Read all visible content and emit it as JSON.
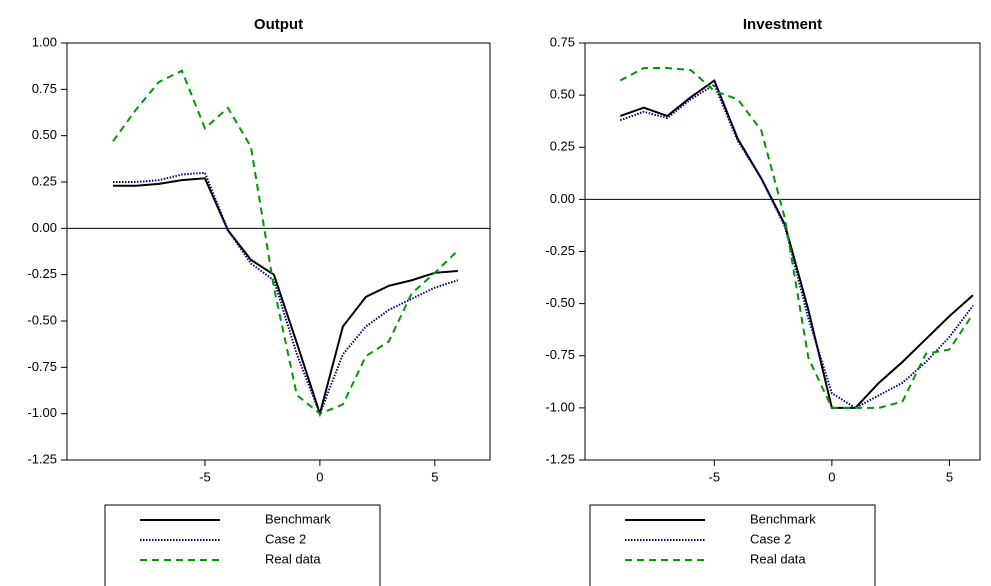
{
  "chart_data": [
    {
      "type": "line",
      "title": "Output",
      "x": [
        -9,
        -8,
        -7,
        -6,
        -5,
        -4,
        -3,
        -2,
        -1,
        0,
        1,
        2,
        3,
        4,
        5,
        6
      ],
      "xlim": [
        -11,
        7.4
      ],
      "xticks": [
        -5,
        0,
        5
      ],
      "ylim": [
        -1.25,
        1.0
      ],
      "yticks": [
        {
          "value": 1.0,
          "label": "1.00"
        },
        {
          "value": 0.75,
          "label": "0.75"
        },
        {
          "value": 0.5,
          "label": "0.50"
        },
        {
          "value": 0.25,
          "label": "0.25"
        },
        {
          "value": 0,
          "label": "0.00"
        },
        {
          "value": -0.25,
          "label": "-0.25"
        },
        {
          "value": -0.5,
          "label": "-0.50"
        },
        {
          "value": -0.75,
          "label": "-0.75"
        },
        {
          "value": -1.0,
          "label": "-1.00"
        },
        {
          "value": -1.25,
          "label": "-1.25"
        }
      ],
      "zero_line": true,
      "series": [
        {
          "name": "Benchmark",
          "color": "#000000",
          "style": "solid",
          "values": [
            0.23,
            0.23,
            0.24,
            0.26,
            0.27,
            -0.01,
            -0.17,
            -0.25,
            -0.62,
            -1.0,
            -0.53,
            -0.37,
            -0.31,
            -0.28,
            -0.24,
            -0.23
          ]
        },
        {
          "name": "Case 2",
          "color": "#000080",
          "style": "dotted",
          "values": [
            0.25,
            0.25,
            0.26,
            0.29,
            0.3,
            -0.01,
            -0.19,
            -0.28,
            -0.68,
            -1.0,
            -0.68,
            -0.53,
            -0.44,
            -0.38,
            -0.32,
            -0.28
          ]
        },
        {
          "name": "Real data",
          "color": "#009900",
          "style": "dashed",
          "values": [
            0.47,
            0.64,
            0.79,
            0.85,
            0.54,
            0.65,
            0.44,
            -0.32,
            -0.9,
            -1.0,
            -0.95,
            -0.69,
            -0.61,
            -0.35,
            -0.24,
            -0.12
          ]
        }
      ]
    },
    {
      "type": "line",
      "title": "Investment",
      "x": [
        -9,
        -8,
        -7,
        -6,
        -5,
        -4,
        -3,
        -2,
        -1,
        0,
        1,
        2,
        3,
        4,
        5,
        6
      ],
      "xlim": [
        -10.5,
        6.3
      ],
      "xticks": [
        -5,
        0,
        5
      ],
      "ylim": [
        -1.25,
        0.75
      ],
      "yticks": [
        {
          "value": 0.75,
          "label": "0.75"
        },
        {
          "value": 0.5,
          "label": "0.50"
        },
        {
          "value": 0.25,
          "label": "0.25"
        },
        {
          "value": 0,
          "label": "0.00"
        },
        {
          "value": -0.25,
          "label": "-0.25"
        },
        {
          "value": -0.5,
          "label": "-0.50"
        },
        {
          "value": -0.75,
          "label": "-0.75"
        },
        {
          "value": -1.0,
          "label": "-1.00"
        },
        {
          "value": -1.25,
          "label": "-1.25"
        }
      ],
      "zero_line": true,
      "series": [
        {
          "name": "Benchmark",
          "color": "#000000",
          "style": "solid",
          "values": [
            0.4,
            0.44,
            0.4,
            0.49,
            0.57,
            0.29,
            0.1,
            -0.12,
            -0.53,
            -1.0,
            -1.0,
            -0.88,
            -0.78,
            -0.67,
            -0.56,
            -0.46
          ]
        },
        {
          "name": "Case 2",
          "color": "#000080",
          "style": "dotted",
          "values": [
            0.38,
            0.42,
            0.39,
            0.48,
            0.55,
            0.28,
            0.1,
            -0.13,
            -0.57,
            -0.93,
            -1.0,
            -0.94,
            -0.88,
            -0.78,
            -0.66,
            -0.51
          ]
        },
        {
          "name": "Real data",
          "color": "#009900",
          "style": "dashed",
          "values": [
            0.57,
            0.63,
            0.63,
            0.62,
            0.52,
            0.48,
            0.33,
            -0.09,
            -0.76,
            -1.0,
            -1.0,
            -1.0,
            -0.97,
            -0.74,
            -0.72,
            -0.55
          ]
        }
      ]
    }
  ]
}
